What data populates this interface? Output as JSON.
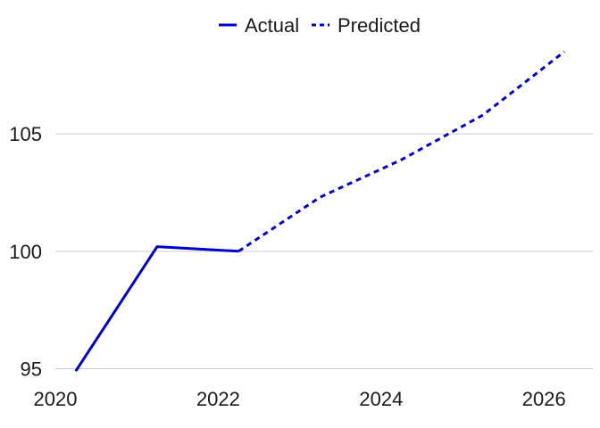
{
  "chart_data": {
    "type": "line",
    "title": "",
    "xlabel": "",
    "ylabel": "",
    "xlim": [
      2020,
      2026.6
    ],
    "ylim": [
      94.3,
      108.8
    ],
    "x_ticks": [
      2020,
      2022,
      2024,
      2026
    ],
    "y_ticks": [
      95,
      100,
      105
    ],
    "grid": "horizontal",
    "legend_position": "top",
    "series": [
      {
        "name": "Actual",
        "style": "solid",
        "color": "#0000CC",
        "points": [
          {
            "x": "2020-04",
            "y": 94.9
          },
          {
            "x": "2021-04",
            "y": 100.2
          },
          {
            "x": "2022-04",
            "y": 100.0
          }
        ]
      },
      {
        "name": "Predicted",
        "style": "dashed",
        "color": "#0000CC",
        "points": [
          {
            "x": "2022-04",
            "y": 100.0
          },
          {
            "x": "2023-04",
            "y": 102.3
          },
          {
            "x": "2024-04",
            "y": 103.9
          },
          {
            "x": "2025-04",
            "y": 105.8
          },
          {
            "x": "2026-04",
            "y": 108.5
          }
        ]
      }
    ]
  }
}
